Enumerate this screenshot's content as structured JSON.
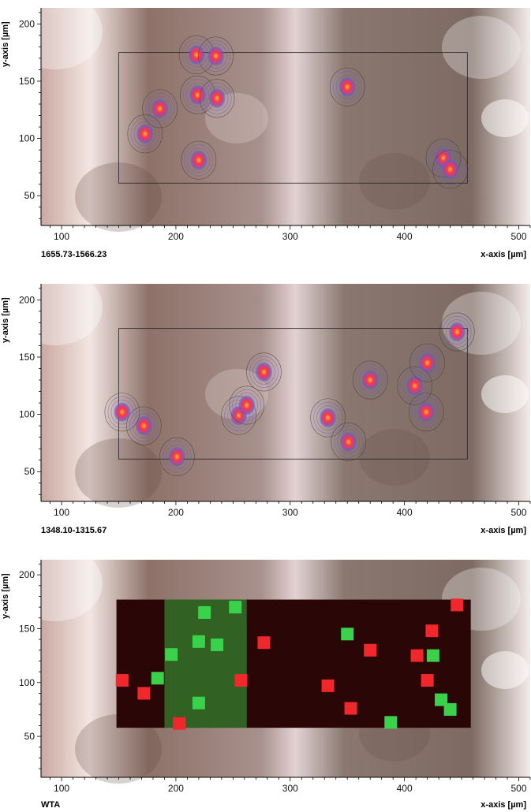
{
  "chart_data": [
    {
      "type": "contour",
      "caption": "1655.73-1566.23",
      "xlabel": "x-axis [µm]",
      "ylabel": "y-axis [µm]",
      "xlim": [
        82,
        510
      ],
      "ylim": [
        24,
        214
      ],
      "xticks": [
        100,
        200,
        300,
        400,
        500
      ],
      "yticks": [
        50,
        100,
        150,
        200
      ],
      "region": {
        "x": [
          150,
          455
        ],
        "y": [
          61,
          175
        ]
      },
      "hotspots": [
        {
          "x": 173,
          "y": 104
        },
        {
          "x": 186,
          "y": 126
        },
        {
          "x": 219,
          "y": 138
        },
        {
          "x": 236,
          "y": 135
        },
        {
          "x": 220,
          "y": 81
        },
        {
          "x": 350,
          "y": 145
        },
        {
          "x": 434,
          "y": 83
        },
        {
          "x": 440,
          "y": 73
        },
        {
          "x": 218,
          "y": 173
        },
        {
          "x": 235,
          "y": 172
        }
      ]
    },
    {
      "type": "contour",
      "caption": "1348.10-1315.67",
      "xlabel": "x-axis [µm]",
      "ylabel": "y-axis [µm]",
      "xlim": [
        82,
        510
      ],
      "ylim": [
        24,
        214
      ],
      "xticks": [
        100,
        200,
        300,
        400,
        500
      ],
      "yticks": [
        50,
        100,
        150,
        200
      ],
      "region": {
        "x": [
          150,
          455
        ],
        "y": [
          61,
          175
        ]
      },
      "hotspots": [
        {
          "x": 172,
          "y": 90
        },
        {
          "x": 153,
          "y": 102
        },
        {
          "x": 201,
          "y": 63
        },
        {
          "x": 255,
          "y": 99
        },
        {
          "x": 262,
          "y": 108
        },
        {
          "x": 277,
          "y": 137
        },
        {
          "x": 333,
          "y": 97
        },
        {
          "x": 351,
          "y": 76
        },
        {
          "x": 370,
          "y": 130
        },
        {
          "x": 409,
          "y": 125
        },
        {
          "x": 419,
          "y": 102
        },
        {
          "x": 420,
          "y": 145
        },
        {
          "x": 446,
          "y": 172
        }
      ]
    },
    {
      "type": "heatmap",
      "caption": "WTA",
      "xlabel": "x-axis [µm]",
      "ylabel": "y-axis [µm]",
      "xlim": [
        82,
        510
      ],
      "ylim": [
        12,
        214
      ],
      "xticks": [
        100,
        200,
        300,
        400,
        500
      ],
      "yticks": [
        50,
        100,
        150,
        200
      ],
      "region": {
        "x": [
          148,
          458
        ],
        "y": [
          58,
          177
        ]
      },
      "colors": {
        "class_1": "#39d24a",
        "class_2": "#f0282b",
        "background": "#2a0606"
      },
      "green_spots": [
        {
          "x": 196,
          "y": 126
        },
        {
          "x": 184,
          "y": 104
        },
        {
          "x": 220,
          "y": 138
        },
        {
          "x": 236,
          "y": 135
        },
        {
          "x": 220,
          "y": 81
        },
        {
          "x": 350,
          "y": 145
        },
        {
          "x": 432,
          "y": 84
        },
        {
          "x": 440,
          "y": 75
        },
        {
          "x": 252,
          "y": 170
        },
        {
          "x": 225,
          "y": 165
        },
        {
          "x": 425,
          "y": 125
        },
        {
          "x": 388,
          "y": 63
        }
      ],
      "red_spots": [
        {
          "x": 172,
          "y": 90
        },
        {
          "x": 153,
          "y": 102
        },
        {
          "x": 203,
          "y": 62
        },
        {
          "x": 257,
          "y": 102
        },
        {
          "x": 277,
          "y": 137
        },
        {
          "x": 333,
          "y": 97
        },
        {
          "x": 353,
          "y": 76
        },
        {
          "x": 370,
          "y": 130
        },
        {
          "x": 411,
          "y": 125
        },
        {
          "x": 420,
          "y": 102
        },
        {
          "x": 424,
          "y": 148
        },
        {
          "x": 446,
          "y": 172
        }
      ]
    }
  ]
}
